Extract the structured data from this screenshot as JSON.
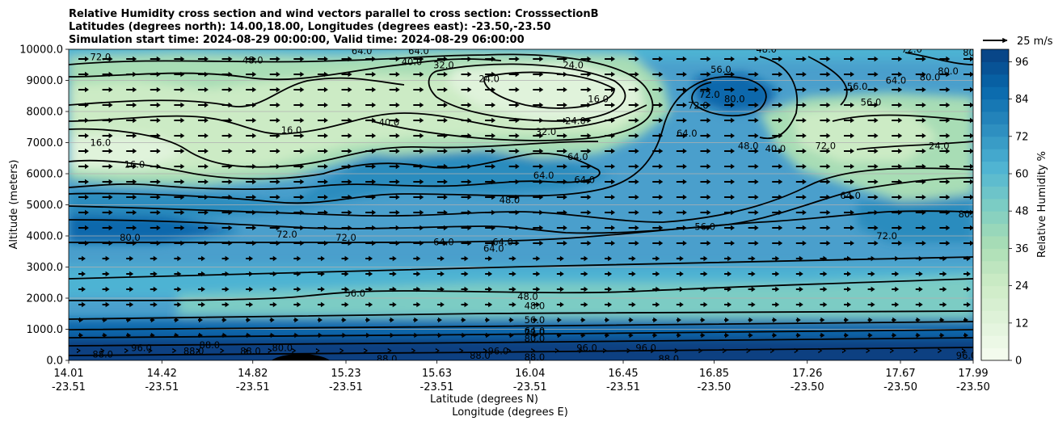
{
  "chart_data": {
    "type": "heatmap",
    "title_lines": [
      "Relative Humidity cross section and wind vectors parallel to cross section: CrosssectionB",
      "Latitudes (degrees north): 14.00,18.00, Longitudes (degrees east): -23.50,-23.50",
      "Simulation start time: 2024-08-29 00:00:00, Valid time: 2024-08-29 06:00:00"
    ],
    "xlabel_lines": [
      "Latitude (degrees N)",
      "Longitude (degrees E)"
    ],
    "ylabel": "Altitude (meters)",
    "x_ticks": [
      {
        "lat": "14.01",
        "lon": "-23.51"
      },
      {
        "lat": "14.42",
        "lon": "-23.51"
      },
      {
        "lat": "14.82",
        "lon": "-23.51"
      },
      {
        "lat": "15.23",
        "lon": "-23.51"
      },
      {
        "lat": "15.63",
        "lon": "-23.51"
      },
      {
        "lat": "16.04",
        "lon": "-23.51"
      },
      {
        "lat": "16.45",
        "lon": "-23.51"
      },
      {
        "lat": "16.85",
        "lon": "-23.50"
      },
      {
        "lat": "17.26",
        "lon": "-23.50"
      },
      {
        "lat": "17.67",
        "lon": "-23.50"
      },
      {
        "lat": "17.99",
        "lon": "-23.50"
      }
    ],
    "y_ticks": [
      "0.0",
      "1000.0",
      "2000.0",
      "3000.0",
      "4000.0",
      "5000.0",
      "6000.0",
      "7000.0",
      "8000.0",
      "9000.0",
      "10000.0"
    ],
    "ylim": [
      0,
      10000
    ],
    "grid": "horizontal",
    "colorbar": {
      "label": "Relative Humidity %",
      "ticks": [
        0,
        12,
        24,
        36,
        48,
        60,
        72,
        84,
        96
      ],
      "range": [
        0,
        100
      ],
      "colormap": "GnBu",
      "colors": [
        "#f7fcf0",
        "#e0f3db",
        "#ccebc5",
        "#a8ddb5",
        "#7bccc4",
        "#4eb3d3",
        "#2b8cbe",
        "#0868ac",
        "#084081"
      ]
    },
    "quiver_key": {
      "label": "25 m/s",
      "speed": 25
    },
    "contour_labels": [
      {
        "value": "72.0",
        "lat": 14.15,
        "alt": 9750
      },
      {
        "value": "48.0",
        "lat": 14.82,
        "alt": 9650
      },
      {
        "value": "64.0",
        "lat": 15.3,
        "alt": 9950
      },
      {
        "value": "64.0",
        "lat": 15.55,
        "alt": 9950
      },
      {
        "value": "40.0",
        "lat": 15.52,
        "alt": 9600
      },
      {
        "value": "32.0",
        "lat": 15.66,
        "alt": 9500
      },
      {
        "value": "24.0",
        "lat": 16.23,
        "alt": 9500
      },
      {
        "value": "24.0",
        "lat": 15.86,
        "alt": 9050
      },
      {
        "value": "16.0",
        "lat": 16.34,
        "alt": 8400
      },
      {
        "value": "40.0",
        "lat": 15.42,
        "alt": 7650
      },
      {
        "value": "24.0",
        "lat": 16.24,
        "alt": 7700
      },
      {
        "value": "32.0",
        "lat": 16.11,
        "alt": 7350
      },
      {
        "value": "16.0",
        "lat": 14.99,
        "alt": 7400
      },
      {
        "value": "16.0",
        "lat": 14.15,
        "alt": 7000
      },
      {
        "value": "16.0",
        "lat": 14.3,
        "alt": 6300
      },
      {
        "value": "64.0",
        "lat": 16.25,
        "alt": 6550
      },
      {
        "value": "64.0",
        "lat": 16.1,
        "alt": 5950
      },
      {
        "value": "64.0",
        "lat": 16.28,
        "alt": 5800
      },
      {
        "value": "48.0",
        "lat": 15.95,
        "alt": 5150
      },
      {
        "value": "56.0",
        "lat": 16.81,
        "alt": 4300
      },
      {
        "value": "80.0",
        "lat": 14.28,
        "alt": 3950
      },
      {
        "value": "72.0",
        "lat": 14.97,
        "alt": 4050
      },
      {
        "value": "72.0",
        "lat": 15.23,
        "alt": 3950
      },
      {
        "value": "64.0",
        "lat": 15.66,
        "alt": 3800
      },
      {
        "value": "64.0",
        "lat": 15.92,
        "alt": 3800
      },
      {
        "value": "64.0",
        "lat": 15.88,
        "alt": 3600
      },
      {
        "value": "56.0",
        "lat": 15.27,
        "alt": 2150
      },
      {
        "value": "48.0",
        "lat": 16.03,
        "alt": 2050
      },
      {
        "value": "48.0",
        "lat": 16.06,
        "alt": 1750
      },
      {
        "value": "56.0",
        "lat": 16.06,
        "alt": 1300
      },
      {
        "value": "64.0",
        "lat": 16.06,
        "alt": 950
      },
      {
        "value": "72.0",
        "lat": 16.06,
        "alt": 900
      },
      {
        "value": "80.0",
        "lat": 16.06,
        "alt": 700
      },
      {
        "value": "88.0",
        "lat": 15.41,
        "alt": 50
      },
      {
        "value": "88.0",
        "lat": 16.06,
        "alt": 100
      },
      {
        "value": "88.0",
        "lat": 16.65,
        "alt": 50
      },
      {
        "value": "88.0",
        "lat": 14.16,
        "alt": 200
      },
      {
        "value": "96.0",
        "lat": 14.33,
        "alt": 400
      },
      {
        "value": "88.0",
        "lat": 14.56,
        "alt": 300
      },
      {
        "value": "88.0",
        "lat": 14.63,
        "alt": 500
      },
      {
        "value": "88.0",
        "lat": 14.81,
        "alt": 300
      },
      {
        "value": "80.0",
        "lat": 14.95,
        "alt": 400
      },
      {
        "value": "88.0",
        "lat": 15.82,
        "alt": 150
      },
      {
        "value": "96.0",
        "lat": 15.9,
        "alt": 300
      },
      {
        "value": "96.0",
        "lat": 16.29,
        "alt": 400
      },
      {
        "value": "96.0",
        "lat": 16.55,
        "alt": 400
      },
      {
        "value": "96.0",
        "lat": 17.96,
        "alt": 150
      },
      {
        "value": "56.0",
        "lat": 16.88,
        "alt": 9350
      },
      {
        "value": "72.0",
        "lat": 16.83,
        "alt": 8550
      },
      {
        "value": "72.0",
        "lat": 16.78,
        "alt": 8200
      },
      {
        "value": "80.0",
        "lat": 16.94,
        "alt": 8400
      },
      {
        "value": "64.0",
        "lat": 16.73,
        "alt": 7300
      },
      {
        "value": "48.0",
        "lat": 17.0,
        "alt": 6900
      },
      {
        "value": "40.0",
        "lat": 17.12,
        "alt": 6800
      },
      {
        "value": "72.0",
        "lat": 17.34,
        "alt": 6900
      },
      {
        "value": "64.0",
        "lat": 17.45,
        "alt": 5300
      },
      {
        "value": "72.0",
        "lat": 17.61,
        "alt": 4000
      },
      {
        "value": "80.0",
        "lat": 17.8,
        "alt": 9100
      },
      {
        "value": "80.0",
        "lat": 17.97,
        "alt": 4700
      },
      {
        "value": "80.0",
        "lat": 17.88,
        "alt": 9300
      },
      {
        "value": "64.0",
        "lat": 17.65,
        "alt": 9000
      },
      {
        "value": "56.0",
        "lat": 17.48,
        "alt": 8800
      },
      {
        "value": "56.0",
        "lat": 17.54,
        "alt": 8300
      },
      {
        "value": "48.0",
        "lat": 17.08,
        "alt": 10000
      },
      {
        "value": "72.0",
        "lat": 17.72,
        "alt": 10000
      },
      {
        "value": "80.0",
        "lat": 17.99,
        "alt": 9900
      },
      {
        "value": "24.0",
        "lat": 17.84,
        "alt": 6900
      }
    ]
  }
}
